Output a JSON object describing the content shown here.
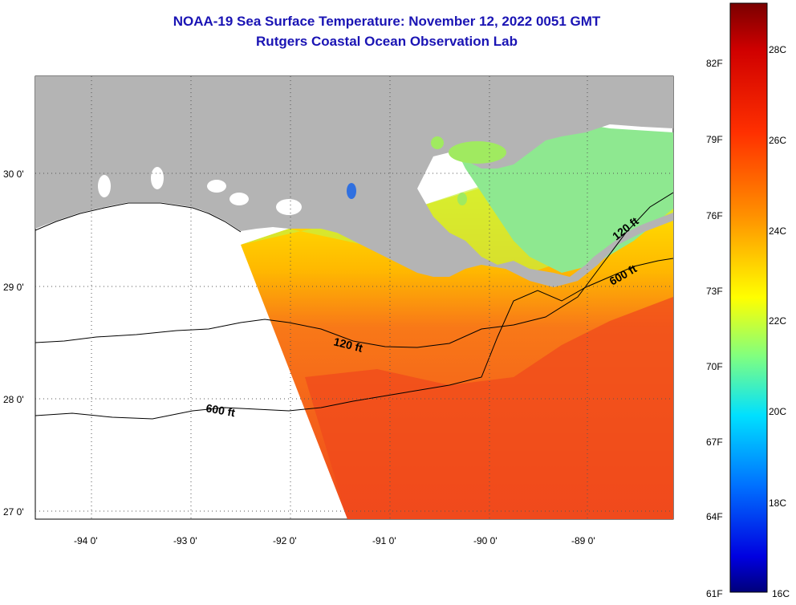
{
  "header": {
    "title": "NOAA-19 Sea Surface Temperature:  November 12, 2022 0051 GMT",
    "subtitle": "Rutgers Coastal Ocean Observation Lab"
  },
  "map": {
    "lat_labels": [
      "30 0'",
      "29 0'",
      "28 0'",
      "27 0'"
    ],
    "lon_labels": [
      "-94 0'",
      "-93 0'",
      "-92 0'",
      "-91 0'",
      "-90 0'",
      "-89 0'"
    ],
    "contours": [
      {
        "label": "120 ft",
        "depth_ft": 120
      },
      {
        "label": "600 ft",
        "depth_ft": 600
      },
      {
        "label": "120 ft",
        "depth_ft": 120
      },
      {
        "label": "600 ft",
        "depth_ft": 600
      }
    ],
    "colors": {
      "land": "#b4b4b4",
      "ocean_no_data": "#ffffff",
      "warm_offshore": "#f0501e",
      "shelf": "#ffd800",
      "nearshore": "#a8e85a"
    }
  },
  "colorbar": {
    "fahrenheit_labels": [
      "82F",
      "79F",
      "76F",
      "73F",
      "70F",
      "67F",
      "64F",
      "61F"
    ],
    "celsius_labels": [
      "28C",
      "26C",
      "24C",
      "22C",
      "20C",
      "18C",
      "16C"
    ],
    "colors": [
      "#800000",
      "#ff0000",
      "#ff8000",
      "#ffff00",
      "#80ff80",
      "#00ffff",
      "#0080ff",
      "#0000ff",
      "#000080"
    ]
  }
}
